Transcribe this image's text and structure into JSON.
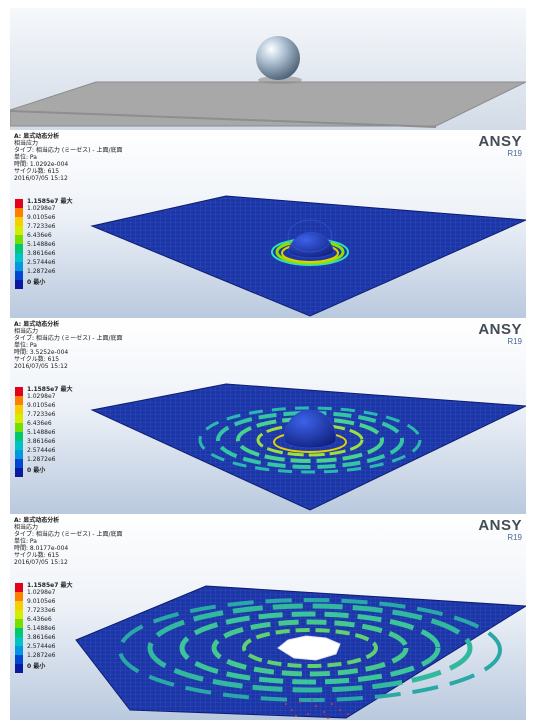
{
  "colors": {
    "legend": [
      "#e4001a",
      "#ff7f00",
      "#f4d000",
      "#d8ec00",
      "#74e000",
      "#00c86e",
      "#00c4c4",
      "#0098e0",
      "#0048d0"
    ],
    "plate_blue": "#1c36a6",
    "mesh_line": "#4a66e0"
  },
  "results": [
    {
      "header": "A: 显式动态分析",
      "result_name": "相当应力",
      "type_line": "タイプ: 相当応力 (ミーゼス) - 上面/底面",
      "unit_line": "単位: Pa",
      "time_line": "時間: 1.0292e-004",
      "cycle_line": "サイクル数: 615",
      "date_line": "2016/07/05 15:12"
    },
    {
      "header": "A: 显式动态分析",
      "result_name": "相当応力",
      "type_line": "タイプ: 相当応力 (ミーゼス) - 上面/底面",
      "unit_line": "単位: Pa",
      "time_line": "時間: 3.5252e-004",
      "cycle_line": "サイクル数: 615",
      "date_line": "2016/07/05 15:12"
    },
    {
      "header": "A: 显式动态分析",
      "result_name": "相当応力",
      "type_line": "タイプ: 相当応力 (ミーゼス) - 上面/底面",
      "unit_line": "単位: Pa",
      "time_line": "時間: 8.0177e-004",
      "cycle_line": "サイクル数: 615",
      "date_line": "2016/07/05 15:12"
    }
  ],
  "legend": {
    "labels": [
      "1.1585e7 最大",
      "1.0298e7",
      "9.0105e6",
      "7.7233e6",
      "6.436e6",
      "5.1488e6",
      "3.8616e6",
      "2.5744e6",
      "1.2872e6",
      "0 最小"
    ]
  },
  "brand": {
    "name": "ANSY",
    "version": "R19"
  }
}
